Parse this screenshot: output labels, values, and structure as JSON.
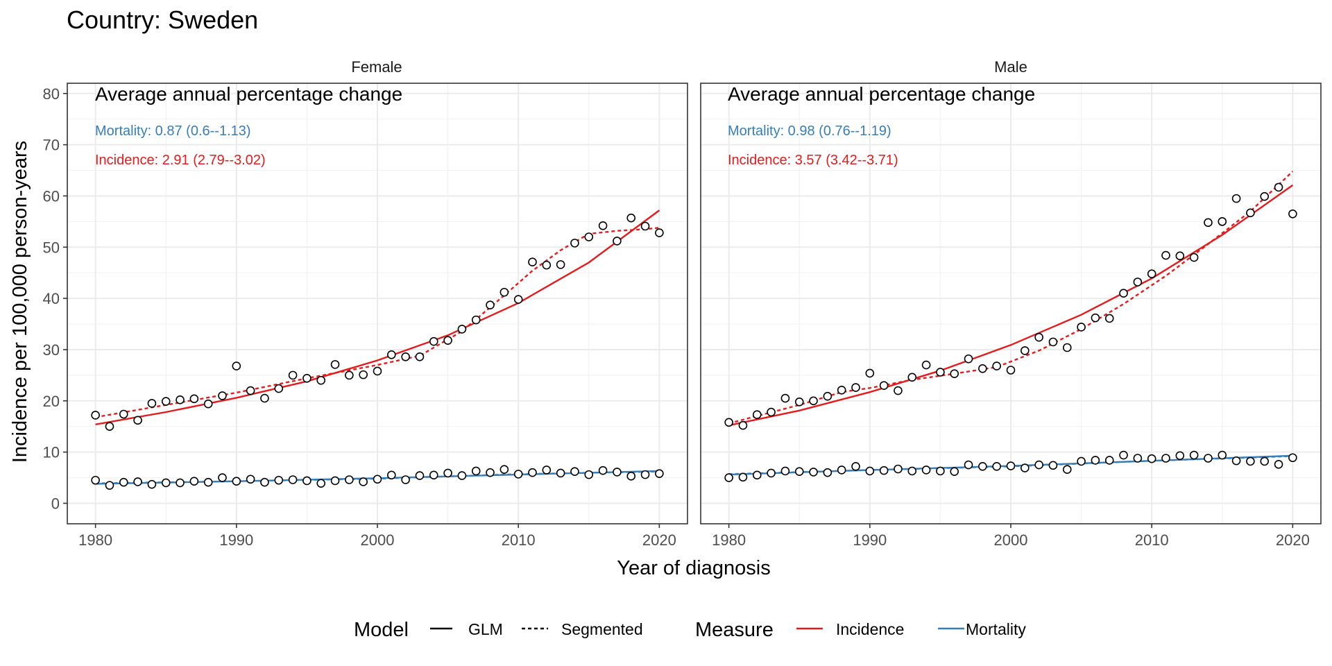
{
  "chart_data": {
    "type": "scatter",
    "title": "Country: Sweden",
    "xlabel": "Year of diagnosis",
    "ylabel": "Incidence per 100,000 person-years",
    "xlim": [
      1978,
      2022
    ],
    "ylim": [
      -4,
      82
    ],
    "x_ticks": [
      1980,
      1990,
      2000,
      2010,
      2020
    ],
    "y_ticks": [
      0,
      10,
      20,
      30,
      40,
      50,
      60,
      70,
      80
    ],
    "grid": true,
    "colors": {
      "incidence": "#E41A1C",
      "mortality": "#377EB8",
      "points": "#000000",
      "panel_border": "#333333",
      "strip": "#ffffff"
    },
    "annotation_heading": "Average annual percentage change",
    "legend": {
      "position": "bottom",
      "model_title": "Model",
      "model_items": [
        "GLM",
        "Segmented"
      ],
      "measure_title": "Measure",
      "measure_items": [
        "Incidence",
        "Mortality"
      ]
    },
    "panels": [
      {
        "strip": "Female",
        "mortality_label": "Mortality: 0.87 (0.6--1.13)",
        "incidence_label": "Incidence: 2.91 (2.79--3.02)",
        "incidence_points": [
          [
            1980,
            17.2
          ],
          [
            1981,
            15.0
          ],
          [
            1982,
            17.4
          ],
          [
            1983,
            16.2
          ],
          [
            1984,
            19.5
          ],
          [
            1985,
            19.9
          ],
          [
            1986,
            20.2
          ],
          [
            1987,
            20.4
          ],
          [
            1988,
            19.4
          ],
          [
            1989,
            21.0
          ],
          [
            1990,
            26.8
          ],
          [
            1991,
            22.0
          ],
          [
            1992,
            20.5
          ],
          [
            1993,
            22.4
          ],
          [
            1994,
            25.0
          ],
          [
            1995,
            24.4
          ],
          [
            1996,
            24.0
          ],
          [
            1997,
            27.1
          ],
          [
            1998,
            25.0
          ],
          [
            1999,
            25.1
          ],
          [
            2000,
            25.8
          ],
          [
            2001,
            29.0
          ],
          [
            2002,
            28.6
          ],
          [
            2003,
            28.6
          ],
          [
            2004,
            31.6
          ],
          [
            2005,
            31.8
          ],
          [
            2006,
            34.0
          ],
          [
            2007,
            35.8
          ],
          [
            2008,
            38.7
          ],
          [
            2009,
            41.2
          ],
          [
            2010,
            39.8
          ],
          [
            2011,
            47.1
          ],
          [
            2012,
            46.5
          ],
          [
            2013,
            46.6
          ],
          [
            2014,
            50.8
          ],
          [
            2015,
            52.0
          ],
          [
            2016,
            54.2
          ],
          [
            2017,
            51.2
          ],
          [
            2018,
            55.7
          ],
          [
            2019,
            54.1
          ],
          [
            2020,
            52.8
          ]
        ],
        "mortality_points": [
          [
            1980,
            4.5
          ],
          [
            1981,
            3.5
          ],
          [
            1982,
            4.1
          ],
          [
            1983,
            4.2
          ],
          [
            1984,
            3.7
          ],
          [
            1985,
            4.0
          ],
          [
            1986,
            4.0
          ],
          [
            1987,
            4.3
          ],
          [
            1988,
            4.1
          ],
          [
            1989,
            5.0
          ],
          [
            1990,
            4.3
          ],
          [
            1991,
            4.7
          ],
          [
            1992,
            4.1
          ],
          [
            1993,
            4.5
          ],
          [
            1994,
            4.6
          ],
          [
            1995,
            4.4
          ],
          [
            1996,
            3.9
          ],
          [
            1997,
            4.4
          ],
          [
            1998,
            4.6
          ],
          [
            1999,
            4.2
          ],
          [
            2000,
            4.7
          ],
          [
            2001,
            5.5
          ],
          [
            2002,
            4.6
          ],
          [
            2003,
            5.4
          ],
          [
            2004,
            5.5
          ],
          [
            2005,
            5.9
          ],
          [
            2006,
            5.4
          ],
          [
            2007,
            6.3
          ],
          [
            2008,
            6.0
          ],
          [
            2009,
            6.6
          ],
          [
            2010,
            5.7
          ],
          [
            2011,
            6.0
          ],
          [
            2012,
            6.5
          ],
          [
            2013,
            5.9
          ],
          [
            2014,
            6.2
          ],
          [
            2015,
            5.6
          ],
          [
            2016,
            6.4
          ],
          [
            2017,
            6.1
          ],
          [
            2018,
            5.3
          ],
          [
            2019,
            5.6
          ],
          [
            2020,
            5.8
          ]
        ],
        "incidence_glm": [
          [
            1980,
            15.4
          ],
          [
            1985,
            17.8
          ],
          [
            1990,
            20.6
          ],
          [
            1995,
            23.8
          ],
          [
            2000,
            27.9
          ],
          [
            2005,
            32.8
          ],
          [
            2010,
            39.1
          ],
          [
            2015,
            47.0
          ],
          [
            2020,
            57.2
          ]
        ],
        "incidence_segmented": [
          [
            1980,
            16.8
          ],
          [
            1985,
            19.2
          ],
          [
            1990,
            21.6
          ],
          [
            1995,
            24.4
          ],
          [
            2000,
            27.0
          ],
          [
            2003,
            28.8
          ],
          [
            2006,
            33.6
          ],
          [
            2009,
            40.6
          ],
          [
            2011,
            45.4
          ],
          [
            2013,
            49.4
          ],
          [
            2015,
            52.6
          ],
          [
            2017,
            53.2
          ],
          [
            2019,
            53.5
          ],
          [
            2020,
            53.8
          ]
        ],
        "mortality_glm": [
          [
            1980,
            3.8
          ],
          [
            1990,
            4.3
          ],
          [
            2000,
            4.9
          ],
          [
            2010,
            5.6
          ],
          [
            2020,
            6.3
          ]
        ],
        "mortality_segmented": [
          [
            1980,
            3.9
          ],
          [
            1990,
            4.3
          ],
          [
            2000,
            4.8
          ],
          [
            2010,
            5.7
          ],
          [
            2020,
            6.2
          ]
        ]
      },
      {
        "strip": "Male",
        "mortality_label": "Mortality: 0.98 (0.76--1.19)",
        "incidence_label": "Incidence: 3.57 (3.42--3.71)",
        "incidence_points": [
          [
            1980,
            15.8
          ],
          [
            1981,
            15.2
          ],
          [
            1982,
            17.3
          ],
          [
            1983,
            17.8
          ],
          [
            1984,
            20.5
          ],
          [
            1985,
            19.8
          ],
          [
            1986,
            20.0
          ],
          [
            1987,
            20.9
          ],
          [
            1988,
            22.1
          ],
          [
            1989,
            22.6
          ],
          [
            1990,
            25.4
          ],
          [
            1991,
            23.0
          ],
          [
            1992,
            22.0
          ],
          [
            1993,
            24.6
          ],
          [
            1994,
            27.0
          ],
          [
            1995,
            25.6
          ],
          [
            1996,
            25.3
          ],
          [
            1997,
            28.2
          ],
          [
            1998,
            26.3
          ],
          [
            1999,
            26.8
          ],
          [
            2000,
            26.0
          ],
          [
            2001,
            29.8
          ],
          [
            2002,
            32.4
          ],
          [
            2003,
            31.5
          ],
          [
            2004,
            30.4
          ],
          [
            2005,
            34.4
          ],
          [
            2006,
            36.2
          ],
          [
            2007,
            36.1
          ],
          [
            2008,
            41.0
          ],
          [
            2009,
            43.2
          ],
          [
            2010,
            44.8
          ],
          [
            2011,
            48.4
          ],
          [
            2012,
            48.3
          ],
          [
            2013,
            48.0
          ],
          [
            2014,
            54.8
          ],
          [
            2015,
            55.0
          ],
          [
            2016,
            59.5
          ],
          [
            2017,
            56.7
          ],
          [
            2018,
            59.9
          ],
          [
            2019,
            61.7
          ],
          [
            2020,
            56.5
          ]
        ],
        "mortality_points": [
          [
            1980,
            5.0
          ],
          [
            1981,
            5.1
          ],
          [
            1982,
            5.5
          ],
          [
            1983,
            5.9
          ],
          [
            1984,
            6.3
          ],
          [
            1985,
            6.2
          ],
          [
            1986,
            6.1
          ],
          [
            1987,
            6.0
          ],
          [
            1988,
            6.5
          ],
          [
            1989,
            7.2
          ],
          [
            1990,
            6.3
          ],
          [
            1991,
            6.4
          ],
          [
            1992,
            6.7
          ],
          [
            1993,
            6.3
          ],
          [
            1994,
            6.5
          ],
          [
            1995,
            6.3
          ],
          [
            1996,
            6.2
          ],
          [
            1997,
            7.5
          ],
          [
            1998,
            7.2
          ],
          [
            1999,
            7.2
          ],
          [
            2000,
            7.3
          ],
          [
            2001,
            6.9
          ],
          [
            2002,
            7.5
          ],
          [
            2003,
            7.4
          ],
          [
            2004,
            6.6
          ],
          [
            2005,
            8.2
          ],
          [
            2006,
            8.4
          ],
          [
            2007,
            8.4
          ],
          [
            2008,
            9.4
          ],
          [
            2009,
            8.8
          ],
          [
            2010,
            8.7
          ],
          [
            2011,
            8.8
          ],
          [
            2012,
            9.3
          ],
          [
            2013,
            9.4
          ],
          [
            2014,
            8.8
          ],
          [
            2015,
            9.4
          ],
          [
            2016,
            8.3
          ],
          [
            2017,
            8.2
          ],
          [
            2018,
            8.2
          ],
          [
            2019,
            7.6
          ],
          [
            2020,
            8.9
          ]
        ],
        "incidence_glm": [
          [
            1980,
            15.2
          ],
          [
            1985,
            18.1
          ],
          [
            1990,
            21.7
          ],
          [
            1995,
            25.9
          ],
          [
            2000,
            30.9
          ],
          [
            2005,
            36.8
          ],
          [
            2010,
            43.9
          ],
          [
            2015,
            52.4
          ],
          [
            2020,
            62.1
          ]
        ],
        "incidence_segmented": [
          [
            1980,
            15.6
          ],
          [
            1985,
            19.2
          ],
          [
            1988,
            21.7
          ],
          [
            1990,
            22.5
          ],
          [
            1993,
            24.1
          ],
          [
            1996,
            25.3
          ],
          [
            1999,
            26.6
          ],
          [
            2002,
            29.8
          ],
          [
            2005,
            34.0
          ],
          [
            2008,
            38.9
          ],
          [
            2011,
            44.4
          ],
          [
            2014,
            50.6
          ],
          [
            2017,
            57.0
          ],
          [
            2020,
            64.8
          ]
        ],
        "mortality_glm": [
          [
            1980,
            5.6
          ],
          [
            1990,
            6.5
          ],
          [
            2000,
            7.3
          ],
          [
            2010,
            8.3
          ],
          [
            2020,
            9.3
          ]
        ],
        "mortality_segmented": [
          [
            1980,
            5.7
          ],
          [
            1990,
            6.5
          ],
          [
            2000,
            7.2
          ],
          [
            2010,
            8.3
          ],
          [
            2020,
            9.2
          ]
        ]
      }
    ]
  }
}
